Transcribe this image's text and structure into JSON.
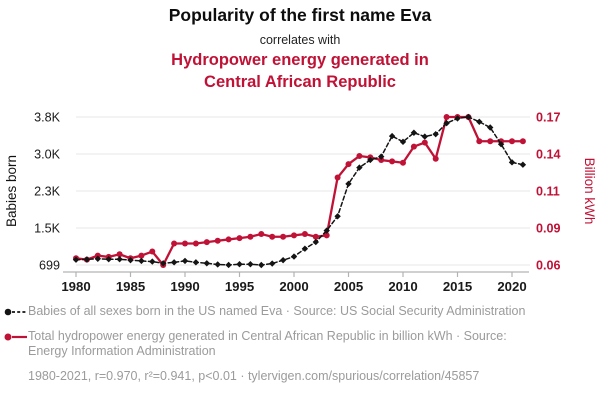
{
  "header": {
    "title": "Popularity of the first name Eva",
    "subtitle": "correlates with",
    "red_title_lines": [
      "Hydropower energy generated in",
      "Central African Republic"
    ]
  },
  "colors": {
    "accent_red": "#c01236",
    "series_black": "#141414",
    "grid": "#e7e7e7",
    "axis": "#b3b3b3",
    "tick_text": "#1a1a1a",
    "legend_text": "#9b9b9b"
  },
  "chart_data": {
    "type": "line",
    "x": [
      1980,
      1981,
      1982,
      1983,
      1984,
      1985,
      1986,
      1987,
      1988,
      1989,
      1990,
      1991,
      1992,
      1993,
      1994,
      1995,
      1996,
      1997,
      1998,
      1999,
      2000,
      2001,
      2002,
      2003,
      2004,
      2005,
      2006,
      2007,
      2008,
      2009,
      2010,
      2011,
      2012,
      2013,
      2014,
      2015,
      2016,
      2017,
      2018,
      2019,
      2020,
      2021
    ],
    "series": [
      {
        "name": "Babies of all sexes born in the US named Eva",
        "axis": "left",
        "style": "dashed-diamond",
        "color": "#141414",
        "values": [
          810,
          815,
          830,
          820,
          820,
          800,
          785,
          770,
          735,
          755,
          785,
          755,
          735,
          710,
          700,
          715,
          715,
          699,
          730,
          800,
          875,
          1040,
          1180,
          1420,
          1720,
          2400,
          2740,
          2900,
          2970,
          3400,
          3280,
          3470,
          3390,
          3440,
          3670,
          3770,
          3800,
          3700,
          3580,
          3230,
          2850,
          2800
        ]
      },
      {
        "name": "Total hydropower energy generated in Central African Republic",
        "axis": "right",
        "style": "solid-circle",
        "color": "#c01236",
        "values": [
          0.065,
          0.064,
          0.067,
          0.066,
          0.068,
          0.065,
          0.067,
          0.07,
          0.06,
          0.076,
          0.076,
          0.076,
          0.077,
          0.078,
          0.079,
          0.08,
          0.081,
          0.083,
          0.081,
          0.081,
          0.082,
          0.083,
          0.081,
          0.082,
          0.125,
          0.135,
          0.141,
          0.14,
          0.138,
          0.137,
          0.136,
          0.148,
          0.151,
          0.139,
          0.17,
          0.17,
          0.17,
          0.152,
          0.152,
          0.152,
          0.152,
          0.152
        ]
      }
    ],
    "left_axis": {
      "label": "Babies born",
      "tick_labels": [
        "699",
        "1.5K",
        "2.3K",
        "3.0K",
        "3.8K"
      ],
      "tick_values": [
        699,
        1474,
        2250,
        3025,
        3800
      ],
      "min": 699,
      "max": 3800
    },
    "right_axis": {
      "label": "Billion kWh",
      "tick_labels": [
        "0.06",
        "0.09",
        "0.11",
        "0.14",
        "0.17"
      ],
      "tick_values": [
        0.06,
        0.0875,
        0.115,
        0.1425,
        0.17
      ],
      "min": 0.06,
      "max": 0.17
    },
    "x_axis": {
      "tick_labels": [
        "1980",
        "1985",
        "1990",
        "1995",
        "2000",
        "2005",
        "2010",
        "2015",
        "2020"
      ],
      "tick_values": [
        1980,
        1985,
        1990,
        1995,
        2000,
        2005,
        2010,
        2015,
        2020
      ]
    },
    "grid": true,
    "legend_position": "bottom"
  },
  "legend": {
    "items": [
      {
        "marker": "black-dashed-dot",
        "label": "Babies of all sexes born in the US named Eva · Source: US Social Security Administration"
      },
      {
        "marker": "red-solid-dot",
        "label": "Total hydropower energy generated in Central African Republic in billion kWh · Source: Energy Information Administration"
      }
    ],
    "footer": "1980-2021, r=0.970, r²=0.941, p<0.01 · tylervigen.com/spurious/correlation/45857"
  }
}
